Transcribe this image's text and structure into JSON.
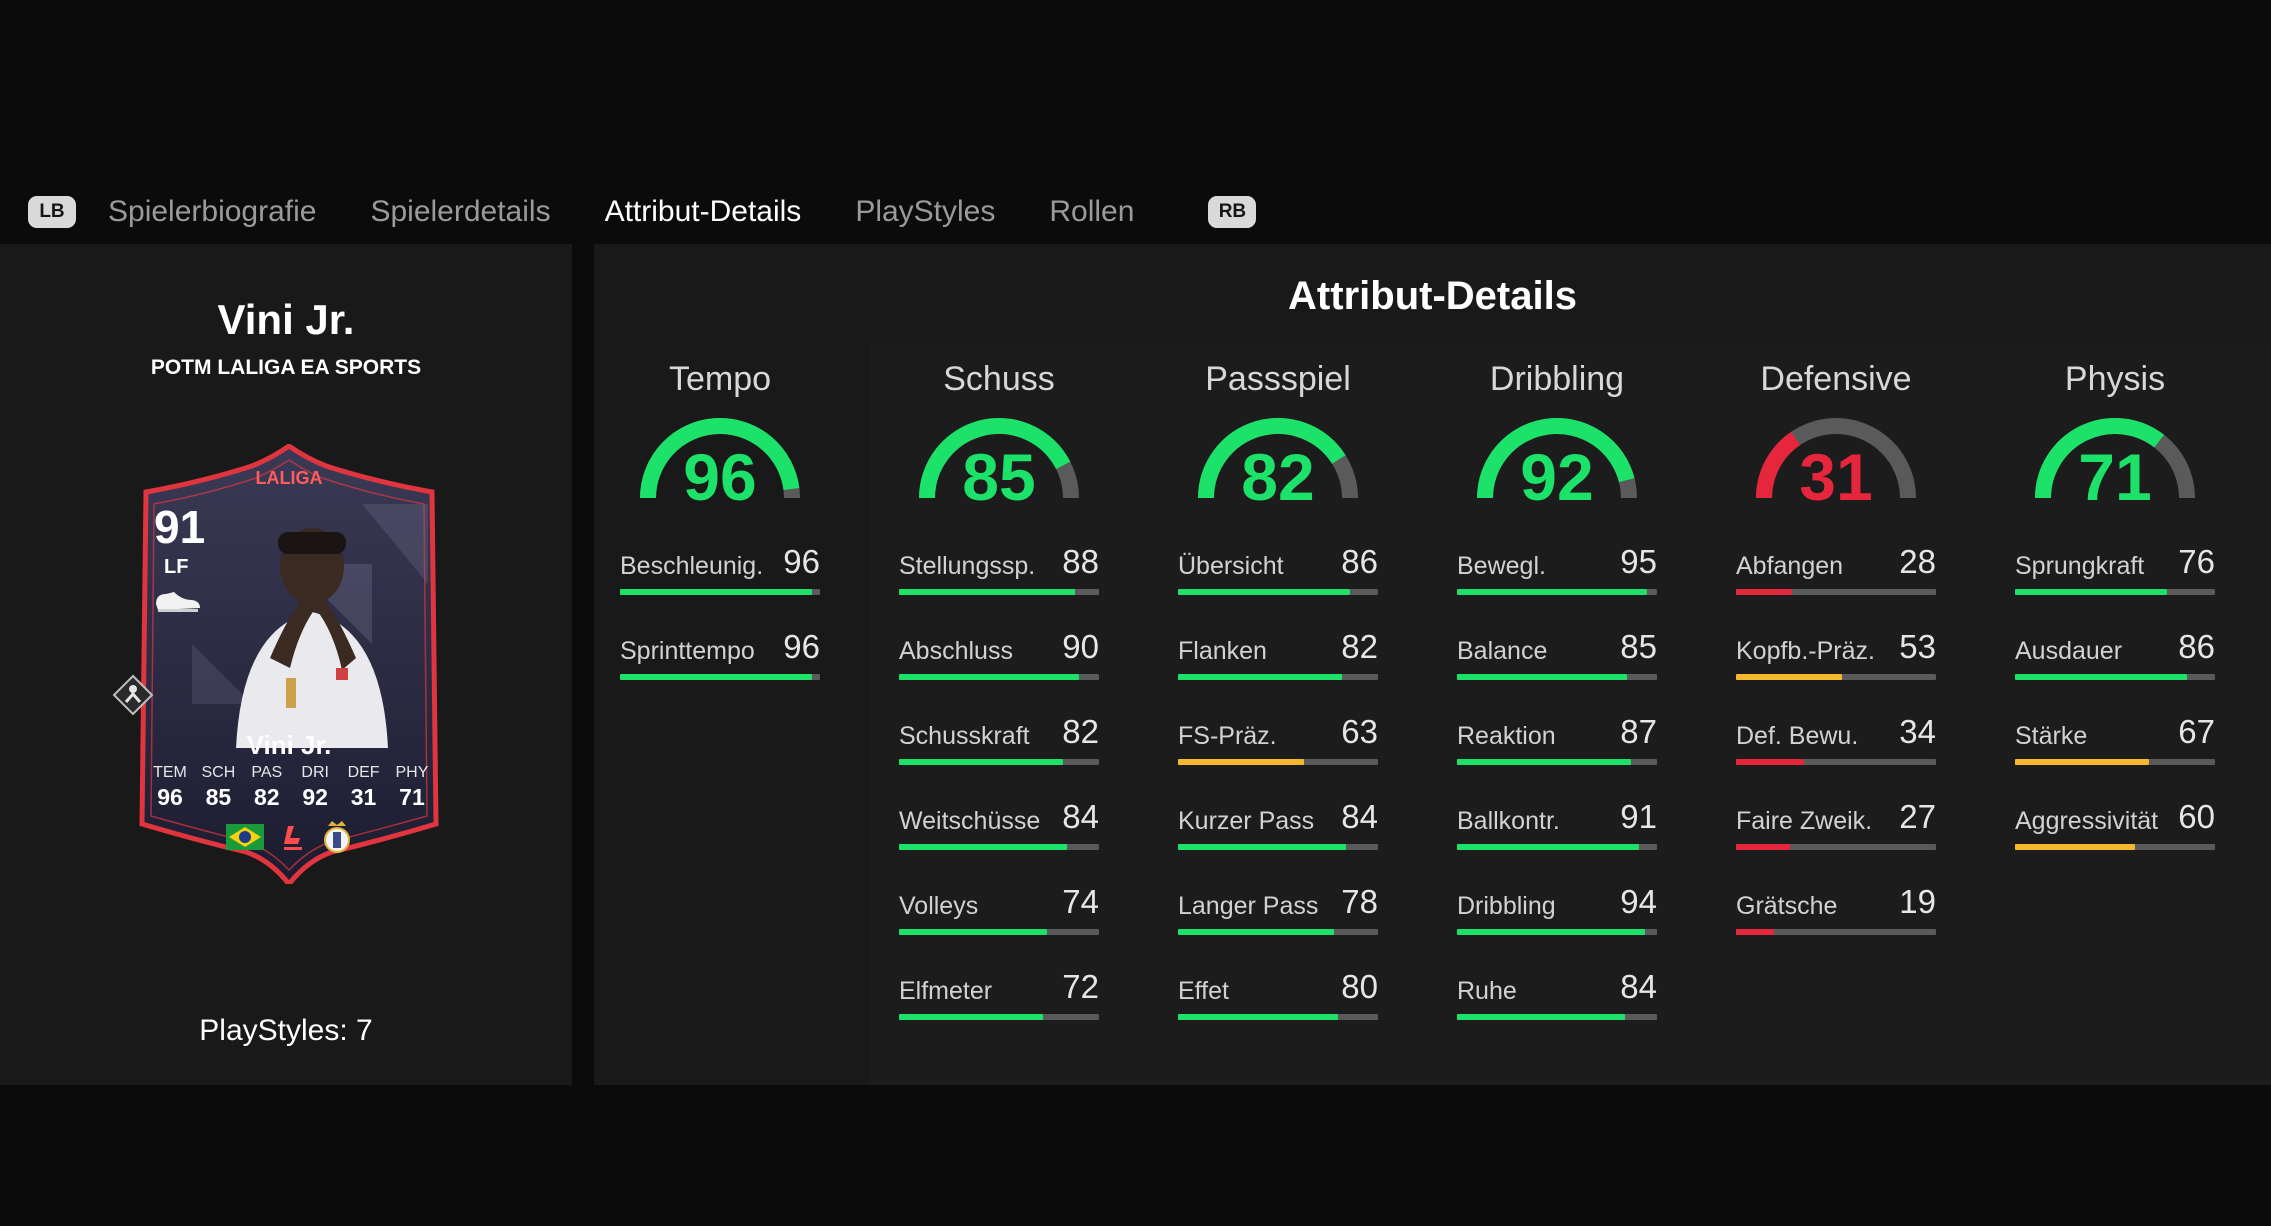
{
  "tabs": {
    "lb": "LB",
    "rb": "RB",
    "items": [
      "Spielerbiografie",
      "Spielerdetails",
      "Attribut-Details",
      "PlayStyles",
      "Rollen"
    ],
    "active": "Attribut-Details"
  },
  "player": {
    "name": "Vini Jr.",
    "subtitle": "POTM LALIGA EA SPORTS",
    "playstyles_label": "PlayStyles: 7"
  },
  "card": {
    "league": "LALIGA",
    "rating": "91",
    "position": "LF",
    "name": "Vini Jr.",
    "stats": [
      {
        "label": "TEM",
        "value": "96"
      },
      {
        "label": "SCH",
        "value": "85"
      },
      {
        "label": "PAS",
        "value": "82"
      },
      {
        "label": "DRI",
        "value": "92"
      },
      {
        "label": "DEF",
        "value": "31"
      },
      {
        "label": "PHY",
        "value": "71"
      }
    ]
  },
  "panel_title": "Attribut-Details",
  "colors": {
    "green": "#1de26a",
    "yellow": "#f5b82e",
    "red": "#e5263c",
    "track": "#5a5a5a",
    "card_border": "#e0343f"
  },
  "categories": [
    {
      "name": "Tempo",
      "value": 96,
      "stats": [
        {
          "label": "Beschleunig.",
          "value": 96
        },
        {
          "label": "Sprinttempo",
          "value": 96
        }
      ]
    },
    {
      "name": "Schuss",
      "value": 85,
      "stats": [
        {
          "label": "Stellungssp.",
          "value": 88
        },
        {
          "label": "Abschluss",
          "value": 90
        },
        {
          "label": "Schusskraft",
          "value": 82
        },
        {
          "label": "Weitschüsse",
          "value": 84
        },
        {
          "label": "Volleys",
          "value": 74
        },
        {
          "label": "Elfmeter",
          "value": 72
        }
      ]
    },
    {
      "name": "Passspiel",
      "value": 82,
      "stats": [
        {
          "label": "Übersicht",
          "value": 86
        },
        {
          "label": "Flanken",
          "value": 82
        },
        {
          "label": "FS-Präz.",
          "value": 63
        },
        {
          "label": "Kurzer Pass",
          "value": 84
        },
        {
          "label": "Langer Pass",
          "value": 78
        },
        {
          "label": "Effet",
          "value": 80
        }
      ]
    },
    {
      "name": "Dribbling",
      "value": 92,
      "stats": [
        {
          "label": "Bewegl.",
          "value": 95
        },
        {
          "label": "Balance",
          "value": 85
        },
        {
          "label": "Reaktion",
          "value": 87
        },
        {
          "label": "Ballkontr.",
          "value": 91
        },
        {
          "label": "Dribbling",
          "value": 94
        },
        {
          "label": "Ruhe",
          "value": 84
        }
      ]
    },
    {
      "name": "Defensive",
      "value": 31,
      "stats": [
        {
          "label": "Abfangen",
          "value": 28
        },
        {
          "label": "Kopfb.-Präz.",
          "value": 53
        },
        {
          "label": "Def. Bewu.",
          "value": 34
        },
        {
          "label": "Faire Zweik.",
          "value": 27
        },
        {
          "label": "Grätsche",
          "value": 19
        }
      ]
    },
    {
      "name": "Physis",
      "value": 71,
      "stats": [
        {
          "label": "Sprungkraft",
          "value": 76
        },
        {
          "label": "Ausdauer",
          "value": 86
        },
        {
          "label": "Stärke",
          "value": 67
        },
        {
          "label": "Aggressivität",
          "value": 60
        }
      ]
    }
  ]
}
